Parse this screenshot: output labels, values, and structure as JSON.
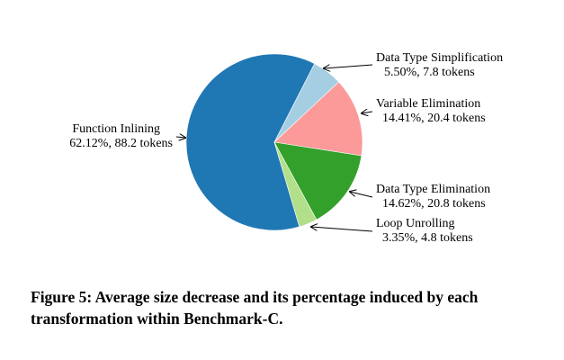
{
  "chart_data": {
    "type": "pie",
    "slices": [
      {
        "name": "Function Inlining",
        "percent": 62.12,
        "tokens": 88.2,
        "percent_label": "62.12%",
        "tokens_label": "88.2 tokens",
        "color": "#1f77b4"
      },
      {
        "name": "Data Type Simplification",
        "percent": 5.5,
        "tokens": 7.8,
        "percent_label": "5.50%",
        "tokens_label": "7.8 tokens",
        "color": "#a6cee3"
      },
      {
        "name": "Variable Elimination",
        "percent": 14.41,
        "tokens": 20.4,
        "percent_label": "14.41%",
        "tokens_label": "20.4 tokens",
        "color": "#fb9a99"
      },
      {
        "name": "Data Type Elimination",
        "percent": 14.62,
        "tokens": 20.8,
        "percent_label": "14.62%",
        "tokens_label": "20.8 tokens",
        "color": "#33a02c"
      },
      {
        "name": "Loop Unrolling",
        "percent": 3.35,
        "tokens": 4.8,
        "percent_label": "3.35%",
        "tokens_label": "4.8 tokens",
        "color": "#b2df8a"
      }
    ],
    "caption": "Figure 5: Average size decrease and its percentage induced by each transformation within Benchmark-C."
  }
}
